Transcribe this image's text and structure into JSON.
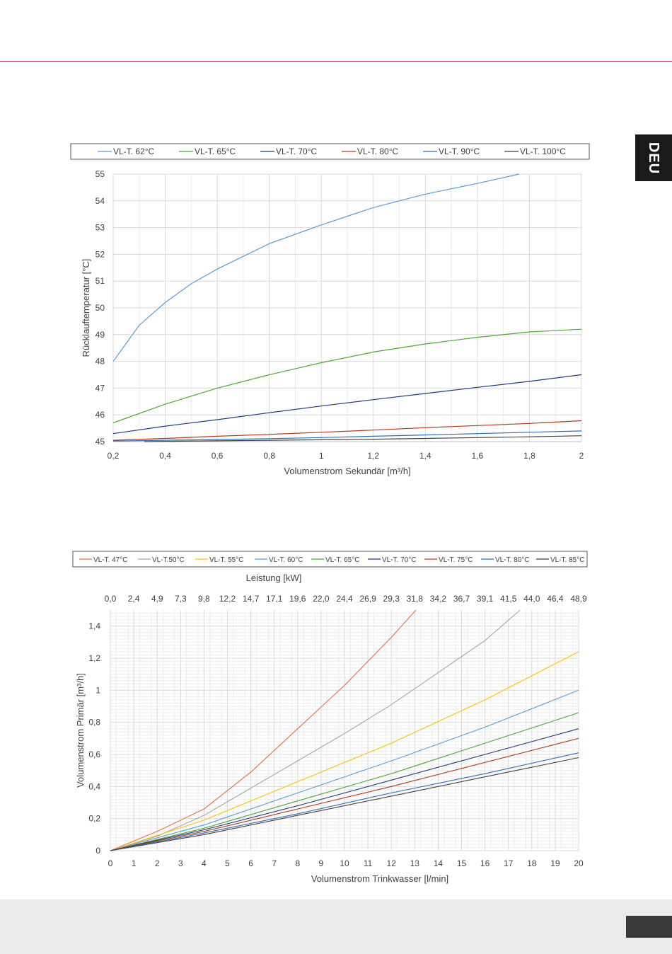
{
  "page": {
    "language_tab": "DEU"
  },
  "chart_data": [
    {
      "type": "line",
      "title": "",
      "xlabel": "Volumenstrom Sekundär [m³/h]",
      "ylabel": "Rücklauftemperatur [°C]",
      "xlim": [
        0.2,
        2
      ],
      "ylim": [
        45,
        55
      ],
      "grid": true,
      "legend_position": "top",
      "x_ticks": [
        "0,2",
        "0,4",
        "0,6",
        "0,8",
        "1",
        "1,2",
        "1,4",
        "1,6",
        "1,8",
        "2"
      ],
      "y_ticks": [
        "45",
        "46",
        "47",
        "48",
        "49",
        "50",
        "51",
        "52",
        "53",
        "54",
        "55"
      ],
      "series": [
        {
          "name": "VL-T. 62°C",
          "color": "#5b9bd5",
          "x": [
            0.2,
            0.3,
            0.4,
            0.5,
            0.6,
            0.8,
            1.0,
            1.2,
            1.4,
            1.6,
            1.76
          ],
          "y": [
            48.0,
            49.35,
            50.2,
            50.9,
            51.45,
            52.4,
            53.1,
            53.75,
            54.25,
            54.65,
            55.0
          ]
        },
        {
          "name": "VL-T. 65°C",
          "color": "#4aa832",
          "x": [
            0.2,
            0.4,
            0.6,
            0.8,
            1.0,
            1.2,
            1.4,
            1.6,
            1.8,
            2.0
          ],
          "y": [
            45.7,
            46.4,
            47.0,
            47.5,
            47.95,
            48.35,
            48.65,
            48.9,
            49.1,
            49.2
          ]
        },
        {
          "name": "VL-T. 70°C",
          "color": "#203a7a",
          "x": [
            0.2,
            0.4,
            0.6,
            0.8,
            1.0,
            1.2,
            1.4,
            1.6,
            1.8,
            2.0
          ],
          "y": [
            45.3,
            45.58,
            45.82,
            46.08,
            46.33,
            46.57,
            46.8,
            47.03,
            47.25,
            47.5
          ]
        },
        {
          "name": "VL-T. 80°C",
          "color": "#b03a1e",
          "x": [
            0.2,
            0.4,
            0.6,
            0.8,
            1.0,
            1.2,
            1.4,
            1.6,
            1.8,
            2.0
          ],
          "y": [
            45.05,
            45.12,
            45.2,
            45.27,
            45.35,
            45.43,
            45.52,
            45.6,
            45.68,
            45.78
          ]
        },
        {
          "name": "VL-T. 90°C",
          "color": "#2e6db4",
          "x": [
            0.2,
            0.4,
            0.6,
            0.8,
            1.0,
            1.2,
            1.4,
            1.6,
            1.8,
            2.0
          ],
          "y": [
            45.02,
            45.05,
            45.08,
            45.11,
            45.15,
            45.2,
            45.25,
            45.3,
            45.35,
            45.4
          ]
        },
        {
          "name": "VL-T. 100°C",
          "color": "#404040",
          "x": [
            0.32,
            0.4,
            0.6,
            0.8,
            1.0,
            1.2,
            1.4,
            1.6,
            1.8,
            2.0
          ],
          "y": [
            45.0,
            45.01,
            45.03,
            45.05,
            45.07,
            45.09,
            45.12,
            45.15,
            45.18,
            45.22
          ]
        }
      ]
    },
    {
      "type": "line",
      "title": "",
      "xlabel": "Volumenstrom Trinkwasser [l/min]",
      "ylabel": "Volumenstrom Primär [m³/h]",
      "x2label": "Leistung [kW]",
      "xlim": [
        0,
        20
      ],
      "ylim": [
        0,
        1.5
      ],
      "grid": true,
      "legend_position": "top",
      "x_ticks": [
        "0",
        "1",
        "2",
        "3",
        "4",
        "5",
        "6",
        "7",
        "8",
        "9",
        "10",
        "11",
        "12",
        "13",
        "14",
        "15",
        "16",
        "17",
        "18",
        "19",
        "20"
      ],
      "x2_ticks": [
        "0,0",
        "2,4",
        "4,9",
        "7,3",
        "9,8",
        "12,2",
        "14,7",
        "17,1",
        "19,6",
        "22,0",
        "24,4",
        "26,9",
        "29,3",
        "31,8",
        "34,2",
        "36,7",
        "39,1",
        "41,5",
        "44,0",
        "46,4",
        "48,9"
      ],
      "y_ticks": [
        "0",
        "0,2",
        "0,4",
        "0,6",
        "0,8",
        "1",
        "1,2",
        "1,4"
      ],
      "series": [
        {
          "name": "VL-T. 47°C",
          "color": "#e8704a",
          "x": [
            0,
            2,
            4,
            6,
            8,
            10,
            12,
            13.05
          ],
          "y": [
            0,
            0.12,
            0.26,
            0.49,
            0.76,
            1.03,
            1.33,
            1.5
          ]
        },
        {
          "name": "VL-T.50°C",
          "color": "#a6a6a6",
          "x": [
            0,
            2,
            4,
            6,
            8,
            10,
            12,
            14,
            16,
            17.5
          ],
          "y": [
            0,
            0.09,
            0.22,
            0.39,
            0.56,
            0.73,
            0.91,
            1.11,
            1.31,
            1.5
          ]
        },
        {
          "name": "VL-T. 55°C",
          "color": "#ffc000",
          "x": [
            0,
            4,
            8,
            12,
            16,
            20
          ],
          "y": [
            0,
            0.19,
            0.43,
            0.67,
            0.94,
            1.24
          ]
        },
        {
          "name": "VL-T. 60°C",
          "color": "#5b9bd5",
          "x": [
            0,
            4,
            8,
            12,
            16,
            20
          ],
          "y": [
            0,
            0.16,
            0.36,
            0.56,
            0.77,
            1.0
          ]
        },
        {
          "name": "VL-T. 65°C",
          "color": "#4aa832",
          "x": [
            0,
            4,
            8,
            12,
            16,
            20
          ],
          "y": [
            0,
            0.14,
            0.31,
            0.48,
            0.67,
            0.86
          ]
        },
        {
          "name": "VL-T. 70°C",
          "color": "#203a7a",
          "x": [
            0,
            4,
            8,
            12,
            16,
            20
          ],
          "y": [
            0,
            0.13,
            0.28,
            0.44,
            0.6,
            0.76
          ]
        },
        {
          "name": "VL-T. 75°C",
          "color": "#b03a1e",
          "x": [
            0,
            4,
            8,
            12,
            16,
            20
          ],
          "y": [
            0,
            0.12,
            0.26,
            0.4,
            0.55,
            0.7
          ]
        },
        {
          "name": "VL-T. 80°C",
          "color": "#2e6db4",
          "x": [
            0,
            4,
            8,
            12,
            16,
            20
          ],
          "y": [
            0,
            0.11,
            0.23,
            0.36,
            0.48,
            0.61
          ]
        },
        {
          "name": "VL-T. 85°C",
          "color": "#404040",
          "x": [
            0,
            4,
            8,
            12,
            16,
            20
          ],
          "y": [
            0,
            0.1,
            0.22,
            0.34,
            0.46,
            0.58
          ]
        }
      ]
    }
  ]
}
